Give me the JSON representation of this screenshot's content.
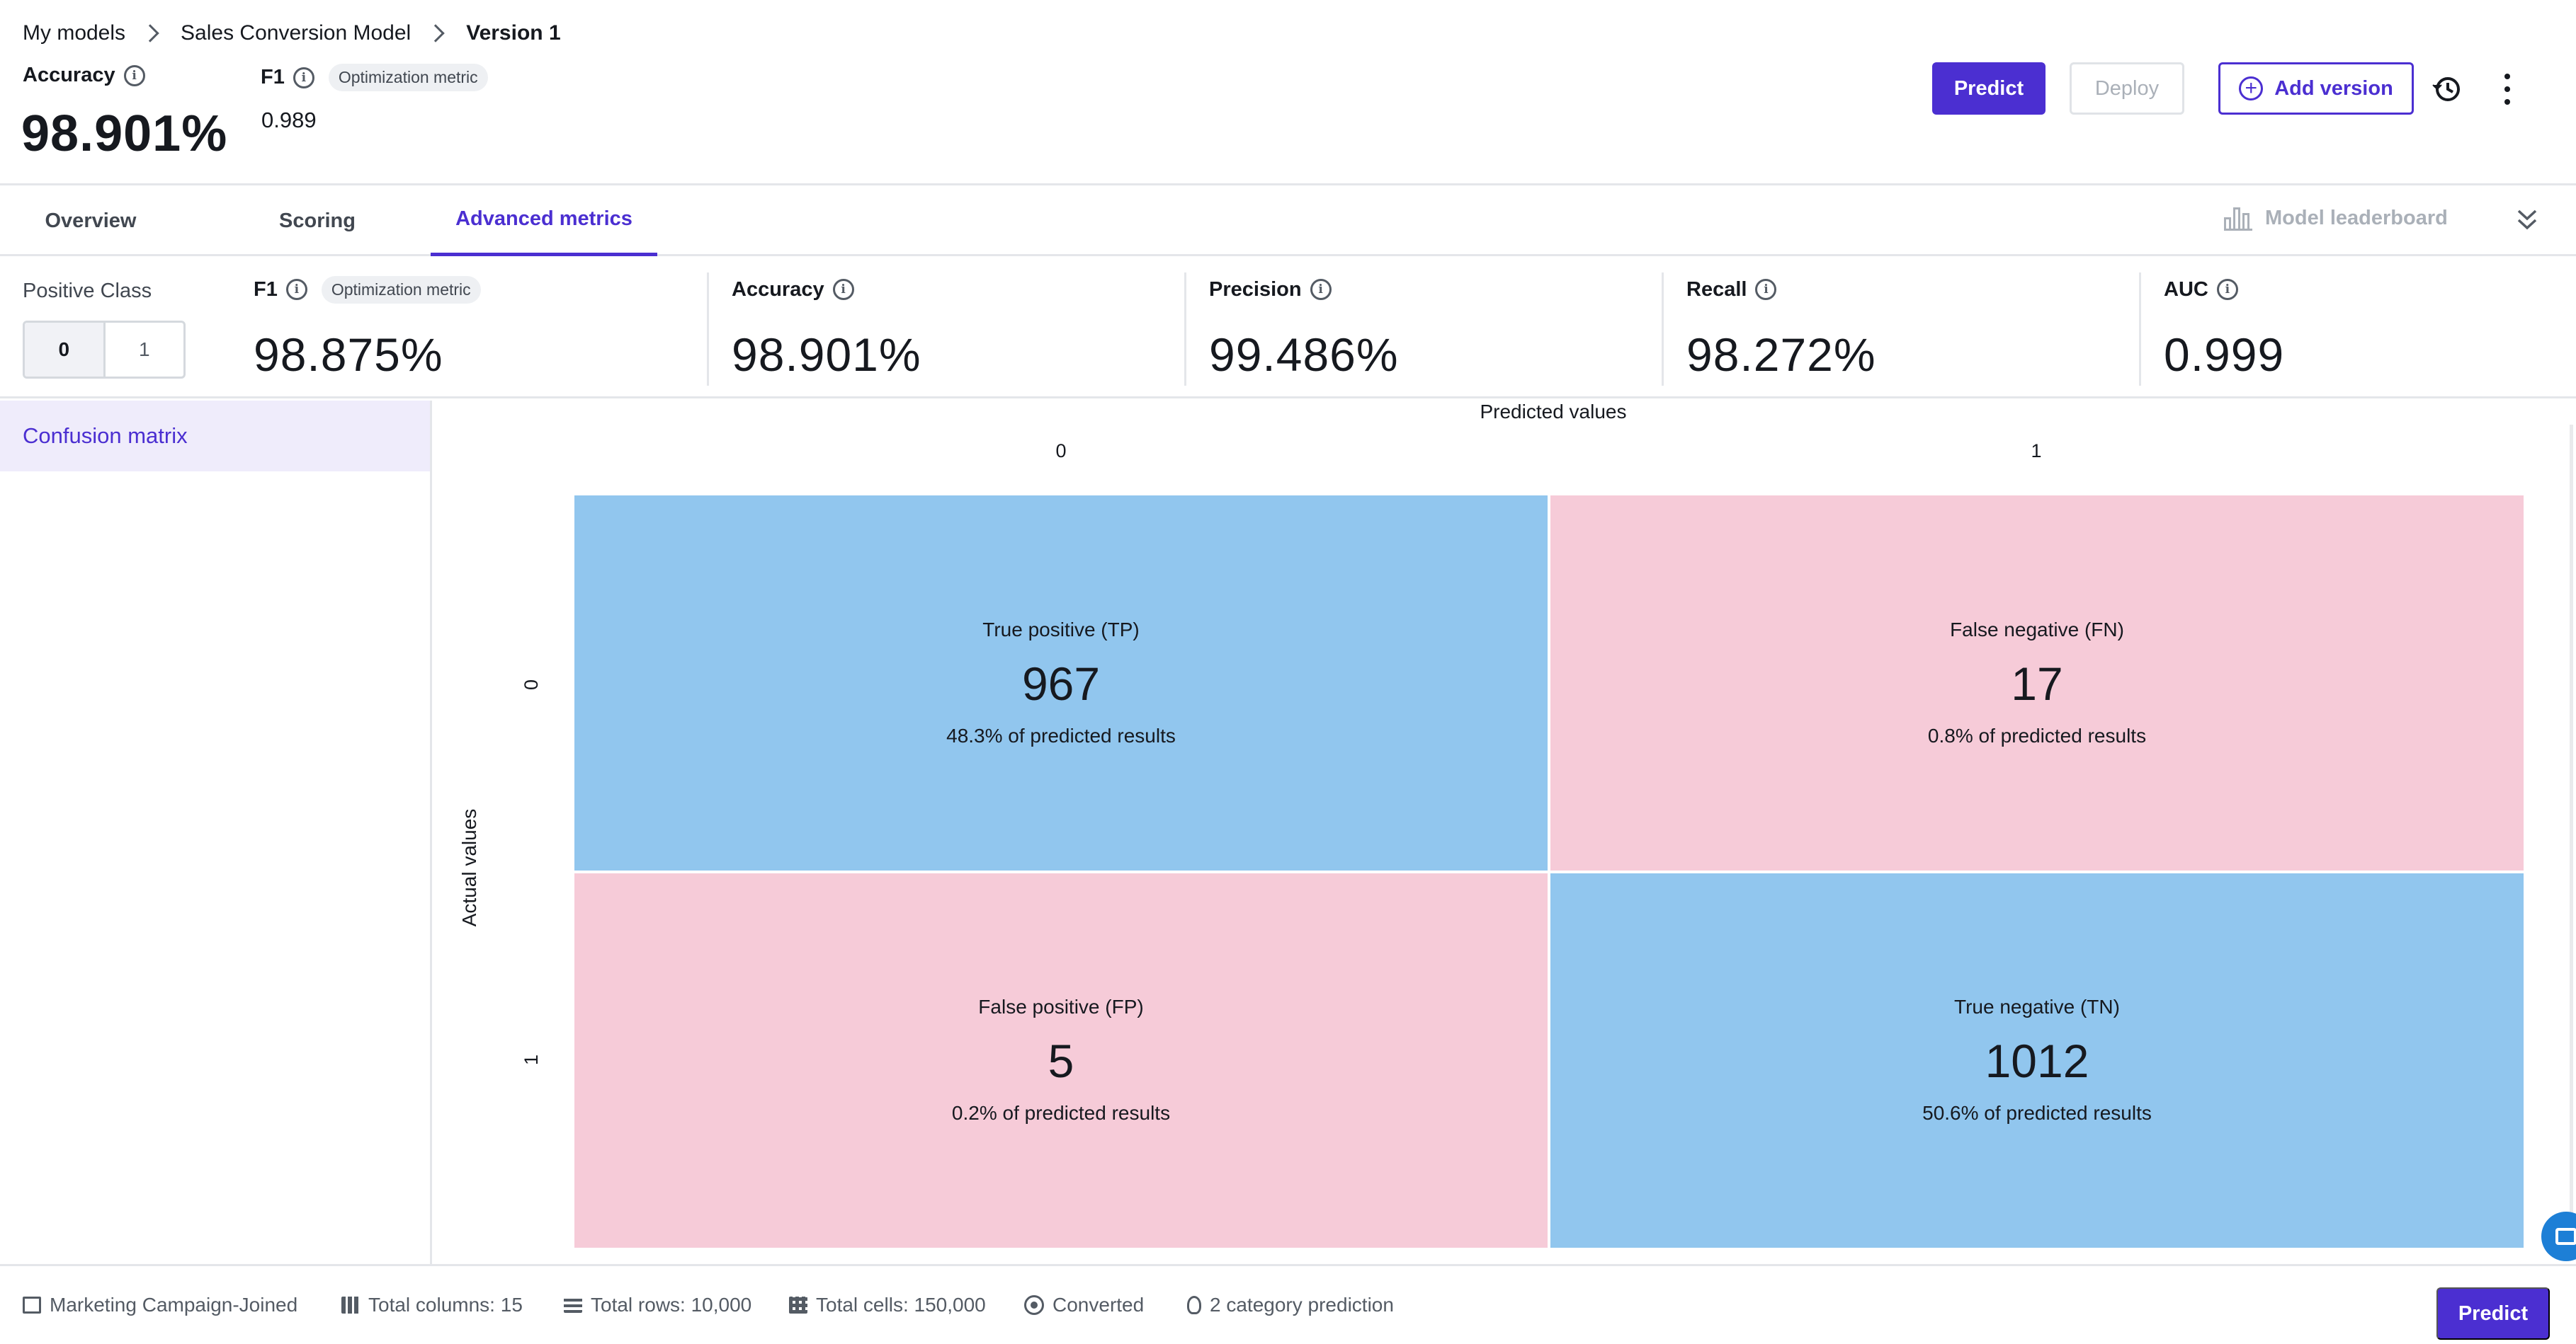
{
  "breadcrumb": {
    "items": [
      "My models",
      "Sales Conversion Model"
    ],
    "current": "Version 1"
  },
  "header": {
    "accuracy_label": "Accuracy",
    "accuracy_value": "98.901%",
    "f1_label": "F1",
    "optimization_badge": "Optimization metric",
    "f1_value": "0.989",
    "predict_label": "Predict",
    "deploy_label": "Deploy",
    "add_version_label": "Add version"
  },
  "tabs": {
    "overview": "Overview",
    "scoring": "Scoring",
    "advanced": "Advanced metrics",
    "leaderboard": "Model leaderboard",
    "active": "Advanced metrics"
  },
  "positive_class": {
    "label": "Positive Class",
    "options": [
      "0",
      "1"
    ],
    "selected": "0"
  },
  "metrics": {
    "f1": {
      "label": "F1",
      "badge": "Optimization metric",
      "value": "98.875%"
    },
    "accuracy": {
      "label": "Accuracy",
      "value": "98.901%"
    },
    "precision": {
      "label": "Precision",
      "value": "99.486%"
    },
    "recall": {
      "label": "Recall",
      "value": "98.272%"
    },
    "auc": {
      "label": "AUC",
      "value": "0.999"
    }
  },
  "sidebar": {
    "items": [
      {
        "label": "Confusion matrix",
        "active": true
      }
    ]
  },
  "matrix": {
    "x_title": "Predicted values",
    "y_title": "Actual values",
    "col_labels": [
      "0",
      "1"
    ],
    "row_labels": [
      "0",
      "1"
    ],
    "cells": [
      {
        "title": "True positive (TP)",
        "count": "967",
        "pct": "48.3% of predicted results",
        "kind": "positive"
      },
      {
        "title": "False negative (FN)",
        "count": "17",
        "pct": "0.8% of predicted results",
        "kind": "negative"
      },
      {
        "title": "False positive (FP)",
        "count": "5",
        "pct": "0.2% of predicted results",
        "kind": "negative"
      },
      {
        "title": "True negative (TN)",
        "count": "1012",
        "pct": "50.6% of predicted results",
        "kind": "positive"
      }
    ],
    "colors": {
      "positive": "#91c6ee",
      "negative": "#f6cbd8"
    }
  },
  "footer": {
    "dataset": "Marketing Campaign-Joined",
    "total_columns": "Total columns: 15",
    "total_rows": "Total rows: 10,000",
    "total_cells": "Total cells: 150,000",
    "target": "Converted",
    "prediction_type": "2 category prediction",
    "predict_label": "Predict"
  },
  "colors": {
    "accent": "#4b2fd1",
    "border": "#e4e6ea"
  }
}
